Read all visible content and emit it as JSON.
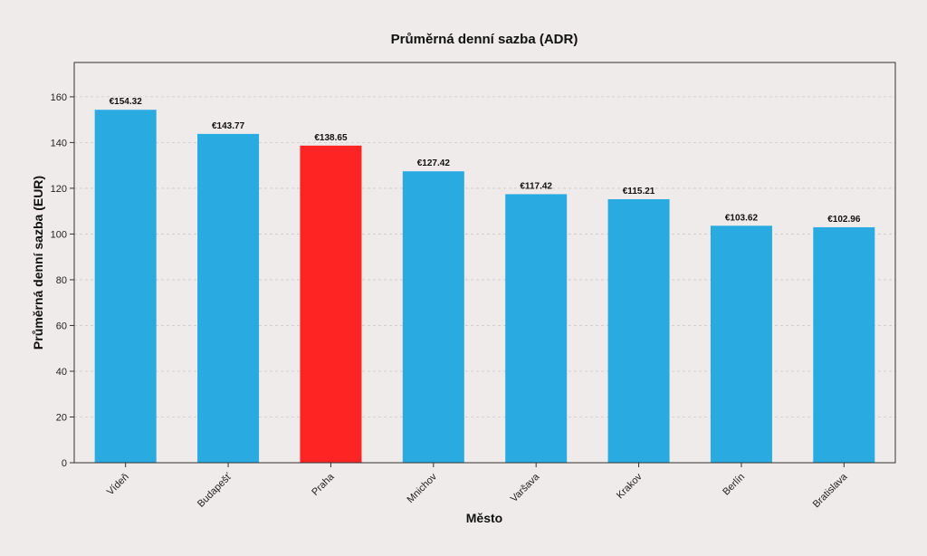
{
  "chart_data": {
    "type": "bar",
    "title": "Průměrná denní sazba (ADR)",
    "xlabel": "Město",
    "ylabel": "Průměrná denní sazba (EUR)",
    "ylim": [
      0,
      175
    ],
    "yticks": [
      0,
      20,
      40,
      60,
      80,
      100,
      120,
      140,
      160
    ],
    "grid": true,
    "categories": [
      "Vídeň",
      "Budapešť",
      "Praha",
      "Mnichov",
      "Varšava",
      "Krakov",
      "Berlín",
      "Bratislava"
    ],
    "values": [
      154.32,
      143.77,
      138.65,
      127.42,
      117.42,
      115.21,
      103.62,
      102.96
    ],
    "value_labels": [
      "€154.32",
      "€143.77",
      "€138.65",
      "€127.42",
      "€117.42",
      "€115.21",
      "€103.62",
      "€102.96"
    ],
    "bar_colors": [
      "#29abe2",
      "#29abe2",
      "#ff2424",
      "#29abe2",
      "#29abe2",
      "#29abe2",
      "#29abe2",
      "#29abe2"
    ]
  }
}
